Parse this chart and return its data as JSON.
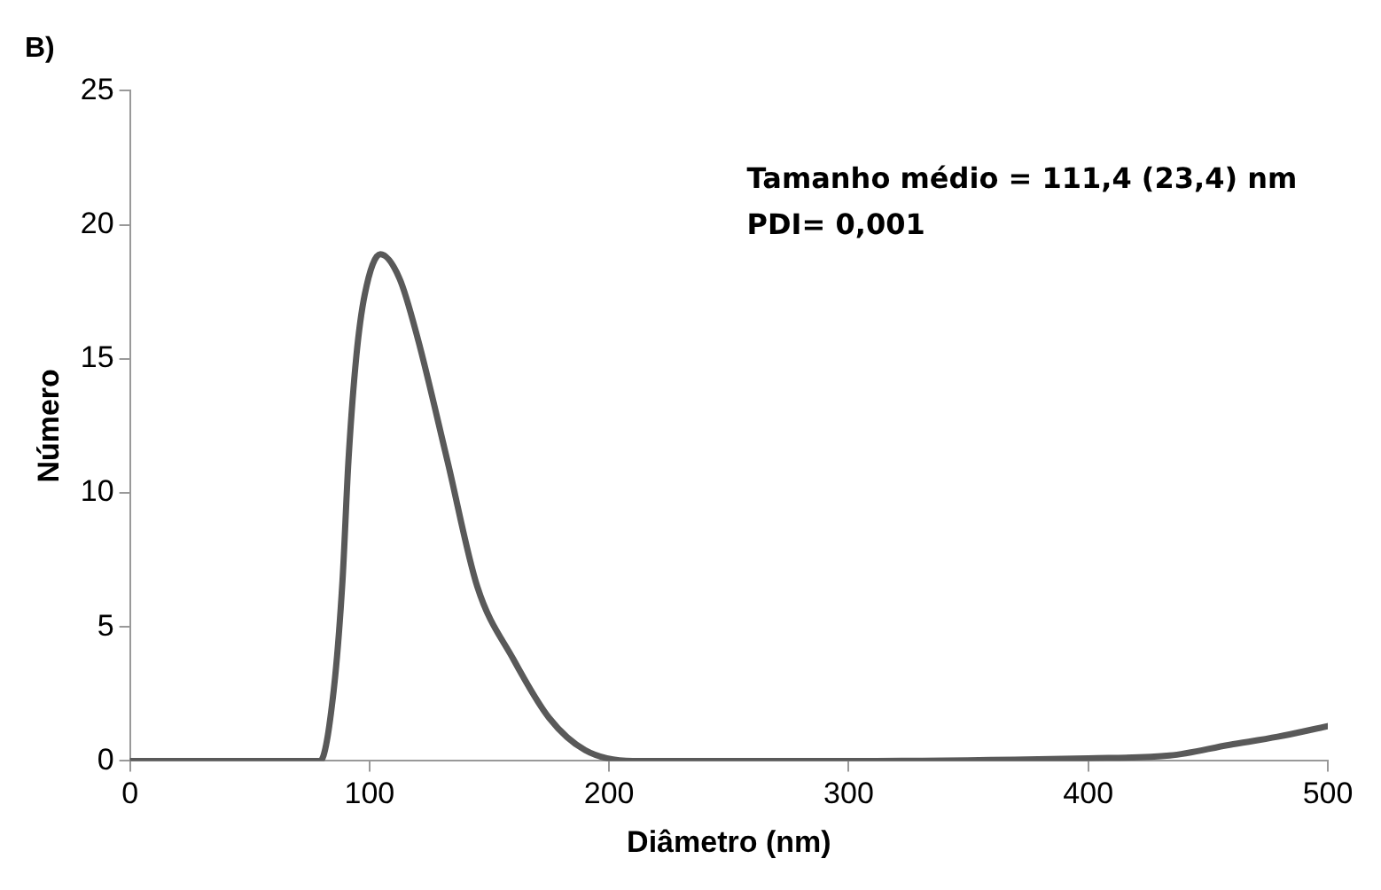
{
  "chart_data": {
    "type": "line",
    "title": "B)",
    "xlabel": "Diâmetro (nm)",
    "ylabel": "Número",
    "annotations": [
      "Tamanho médio = 111,4 (23,4) nm",
      "PDI= 0,001"
    ],
    "x": [
      0,
      79.4,
      85,
      88.7,
      91.2,
      94.5,
      98,
      104.5,
      112.5,
      120,
      132.5,
      145,
      160,
      175,
      190,
      210,
      300,
      400,
      434,
      459,
      479,
      500
    ],
    "series": [
      {
        "color": "#595959",
        "values": [
          0,
          0,
          2.6,
          6.7,
          11.2,
          15.1,
          17.4,
          18.9,
          18,
          15.8,
          11.2,
          6.5,
          3.8,
          1.6,
          0.4,
          0,
          0,
          0.1,
          0.2,
          0.6,
          0.9,
          1.3
        ]
      }
    ],
    "xlim": [
      0,
      500
    ],
    "xticks": [
      0,
      100,
      200,
      300,
      400,
      500
    ],
    "ylim": [
      0,
      25
    ],
    "yticks": [
      0,
      5,
      10,
      15,
      20,
      25
    ],
    "grid": false,
    "legend": false,
    "marker": "none",
    "line_style": "solid"
  }
}
